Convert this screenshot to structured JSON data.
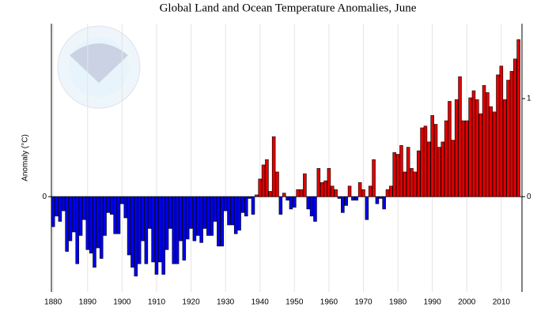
{
  "chart_data": {
    "type": "bar",
    "title": "Global Land and Ocean Temperature Anomalies, June",
    "y_label": "Anomaly (°C)",
    "x": [
      1880,
      1881,
      1882,
      1883,
      1884,
      1885,
      1886,
      1887,
      1888,
      1889,
      1890,
      1891,
      1892,
      1893,
      1894,
      1895,
      1896,
      1897,
      1898,
      1899,
      1900,
      1901,
      1902,
      1903,
      1904,
      1905,
      1906,
      1907,
      1908,
      1909,
      1910,
      1911,
      1912,
      1913,
      1914,
      1915,
      1916,
      1917,
      1918,
      1919,
      1920,
      1921,
      1922,
      1923,
      1924,
      1925,
      1926,
      1927,
      1928,
      1929,
      1930,
      1931,
      1932,
      1933,
      1934,
      1935,
      1936,
      1937,
      1938,
      1939,
      1940,
      1941,
      1942,
      1943,
      1944,
      1945,
      1946,
      1947,
      1948,
      1949,
      1950,
      1951,
      1952,
      1953,
      1954,
      1955,
      1956,
      1957,
      1958,
      1959,
      1960,
      1961,
      1962,
      1963,
      1964,
      1965,
      1966,
      1967,
      1968,
      1969,
      1970,
      1971,
      1972,
      1973,
      1974,
      1975,
      1976,
      1977,
      1978,
      1979,
      1980,
      1981,
      1982,
      1983,
      1984,
      1985,
      1986,
      1987,
      1988,
      1989,
      1990,
      1991,
      1992,
      1993,
      1994,
      1995,
      1996,
      1997,
      1998,
      1999,
      2000,
      2001,
      2002,
      2003,
      2004,
      2005,
      2006,
      2007,
      2008,
      2009,
      2010,
      2011,
      2012,
      2013,
      2014,
      2015
    ],
    "values": [
      -0.17,
      -0.11,
      -0.14,
      -0.08,
      -0.31,
      -0.25,
      -0.2,
      -0.38,
      -0.22,
      -0.13,
      -0.3,
      -0.32,
      -0.4,
      -0.29,
      -0.35,
      -0.22,
      -0.09,
      -0.1,
      -0.21,
      -0.21,
      -0.04,
      -0.12,
      -0.33,
      -0.4,
      -0.45,
      -0.38,
      -0.25,
      -0.38,
      -0.18,
      -0.37,
      -0.44,
      -0.37,
      -0.44,
      -0.3,
      -0.18,
      -0.38,
      -0.38,
      -0.25,
      -0.36,
      -0.24,
      -0.18,
      -0.25,
      -0.22,
      -0.26,
      -0.18,
      -0.22,
      -0.22,
      -0.14,
      -0.28,
      -0.28,
      -0.08,
      -0.16,
      -0.16,
      -0.21,
      -0.19,
      -0.09,
      -0.11,
      -0.01,
      -0.1,
      0.01,
      0.1,
      0.18,
      0.21,
      0.03,
      0.34,
      0.14,
      -0.1,
      0.02,
      -0.02,
      -0.07,
      -0.06,
      0.04,
      0.04,
      0.13,
      -0.07,
      -0.11,
      -0.14,
      0.16,
      0.08,
      0.09,
      0.16,
      0.06,
      0.04,
      -0.01,
      -0.09,
      -0.05,
      0.06,
      -0.02,
      -0.02,
      0.08,
      0.04,
      -0.13,
      0.06,
      0.21,
      -0.04,
      -0.01,
      -0.07,
      0.04,
      0.06,
      0.25,
      0.24,
      0.29,
      0.14,
      0.28,
      0.16,
      0.14,
      0.26,
      0.39,
      0.4,
      0.31,
      0.46,
      0.41,
      0.28,
      0.31,
      0.43,
      0.54,
      0.32,
      0.55,
      0.68,
      0.43,
      0.43,
      0.56,
      0.6,
      0.55,
      0.47,
      0.63,
      0.59,
      0.51,
      0.48,
      0.69,
      0.74,
      0.55,
      0.66,
      0.71,
      0.78,
      0.89
    ],
    "positive_color": "#e00000",
    "negative_color": "#0000ee",
    "xlim": [
      1879.5,
      2016
    ],
    "xticks": [
      1880,
      1890,
      1900,
      1910,
      1920,
      1930,
      1940,
      1950,
      1960,
      1970,
      1980,
      1990,
      2000,
      2010
    ],
    "ylim": [
      -0.54,
      0.98
    ],
    "yticks": [
      0
    ],
    "y2lim": [
      -0.972,
      1.764
    ],
    "y2ticks": [
      0,
      1
    ],
    "grid": true
  }
}
